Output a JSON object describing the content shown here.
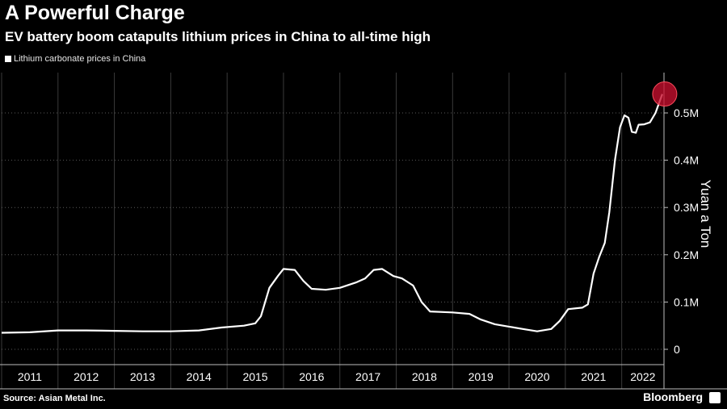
{
  "chart_data": {
    "type": "line",
    "title": "A Powerful Charge",
    "subtitle": "EV battery boom catapults lithium prices in China to all-time high",
    "legend": [
      "Lithium carbonate prices in China"
    ],
    "ylabel": "Yuan a Ton",
    "source": "Source: Asian Metal Inc.",
    "brand": "Bloomberg",
    "x_ticks": [
      "2011",
      "2012",
      "2013",
      "2014",
      "2015",
      "2016",
      "2017",
      "2018",
      "2019",
      "2020",
      "2021",
      "2022"
    ],
    "y_ticks": [
      {
        "value": 0,
        "label": "0"
      },
      {
        "value": 100000,
        "label": "0.1M"
      },
      {
        "value": 200000,
        "label": "0.2M"
      },
      {
        "value": 300000,
        "label": "0.3M"
      },
      {
        "value": 400000,
        "label": "0.4M"
      },
      {
        "value": 500000,
        "label": "0.5M"
      }
    ],
    "ylim": [
      0,
      580000
    ],
    "xlim": [
      2011.0,
      2022.75
    ],
    "grid": true,
    "highlight_color": "#c8102e",
    "line_color": "#ffffff",
    "series": [
      {
        "values": [
          [
            2011.0,
            35000
          ],
          [
            2011.5,
            36000
          ],
          [
            2012.0,
            40000
          ],
          [
            2012.5,
            40000
          ],
          [
            2013.0,
            39000
          ],
          [
            2013.5,
            38000
          ],
          [
            2014.0,
            38000
          ],
          [
            2014.5,
            40000
          ],
          [
            2014.9,
            46000
          ],
          [
            2015.3,
            50000
          ],
          [
            2015.5,
            55000
          ],
          [
            2015.6,
            70000
          ],
          [
            2015.75,
            130000
          ],
          [
            2015.9,
            155000
          ],
          [
            2016.0,
            170000
          ],
          [
            2016.2,
            168000
          ],
          [
            2016.35,
            145000
          ],
          [
            2016.5,
            128000
          ],
          [
            2016.75,
            126000
          ],
          [
            2017.0,
            130000
          ],
          [
            2017.3,
            142000
          ],
          [
            2017.45,
            150000
          ],
          [
            2017.6,
            168000
          ],
          [
            2017.75,
            170000
          ],
          [
            2017.95,
            155000
          ],
          [
            2018.1,
            150000
          ],
          [
            2018.3,
            135000
          ],
          [
            2018.45,
            100000
          ],
          [
            2018.6,
            80000
          ],
          [
            2019.0,
            78000
          ],
          [
            2019.3,
            75000
          ],
          [
            2019.5,
            63000
          ],
          [
            2019.75,
            53000
          ],
          [
            2020.0,
            48000
          ],
          [
            2020.3,
            42000
          ],
          [
            2020.5,
            38000
          ],
          [
            2020.75,
            43000
          ],
          [
            2020.9,
            60000
          ],
          [
            2021.05,
            85000
          ],
          [
            2021.3,
            88000
          ],
          [
            2021.4,
            95000
          ],
          [
            2021.5,
            160000
          ],
          [
            2021.6,
            195000
          ],
          [
            2021.7,
            225000
          ],
          [
            2021.78,
            290000
          ],
          [
            2021.88,
            400000
          ],
          [
            2021.97,
            470000
          ],
          [
            2022.05,
            495000
          ],
          [
            2022.12,
            490000
          ],
          [
            2022.18,
            460000
          ],
          [
            2022.25,
            458000
          ],
          [
            2022.3,
            475000
          ],
          [
            2022.4,
            476000
          ],
          [
            2022.5,
            480000
          ],
          [
            2022.6,
            500000
          ],
          [
            2022.66,
            520000
          ],
          [
            2022.72,
            540000
          ]
        ]
      }
    ]
  }
}
